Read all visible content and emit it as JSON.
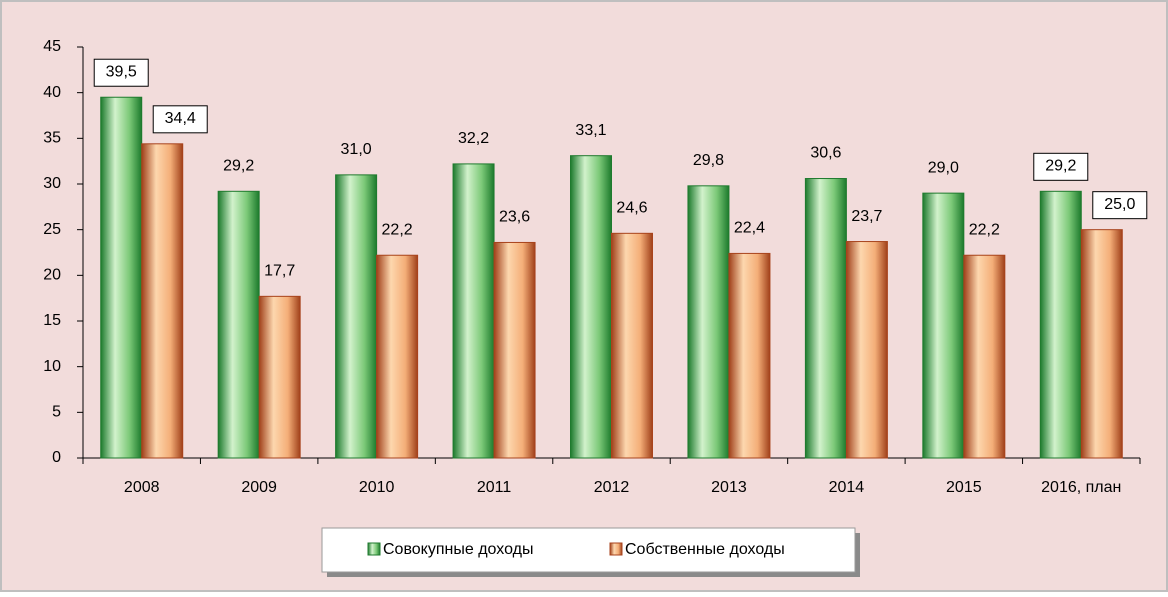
{
  "chart_data": {
    "type": "bar",
    "categories": [
      "2008",
      "2009",
      "2010",
      "2011",
      "2012",
      "2013",
      "2014",
      "2015",
      "2016, план"
    ],
    "series": [
      {
        "name": "Совокупные доходы",
        "color": "#1f7a2e",
        "values": [
          39.5,
          29.2,
          31.0,
          32.2,
          33.1,
          29.8,
          30.6,
          29.0,
          29.2
        ],
        "value_labels": [
          "39,5",
          "29,2",
          "31,0",
          "32,2",
          "33,1",
          "29,8",
          "30,6",
          "29,0",
          "29,2"
        ]
      },
      {
        "name": "Собственные доходы",
        "color": "#a8431c",
        "values": [
          34.4,
          17.7,
          22.2,
          23.6,
          24.6,
          22.4,
          23.7,
          22.2,
          25.0
        ],
        "value_labels": [
          "34,4",
          "17,7",
          "22,2",
          "23,6",
          "24,6",
          "22,4",
          "23,7",
          "22,2",
          "25,0"
        ]
      }
    ],
    "ylim": [
      0,
      45
    ],
    "yticks": [
      0,
      5,
      10,
      15,
      20,
      25,
      30,
      35,
      40,
      45
    ],
    "legend": "bottom"
  }
}
